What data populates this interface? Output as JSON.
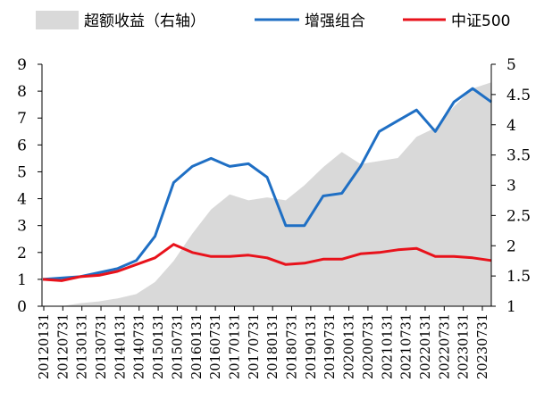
{
  "chart_data": {
    "type": "line",
    "title": "",
    "xlabel": "",
    "ylabel": "",
    "legend": {
      "position": "top",
      "entries": [
        {
          "label": "超额收益（右轴）",
          "kind": "area",
          "color": "#d9d9d9"
        },
        {
          "label": "增强组合",
          "kind": "line",
          "color": "#1f6fc4"
        },
        {
          "label": "中证500",
          "kind": "line",
          "color": "#e8121b"
        }
      ]
    },
    "ylim_left": [
      0,
      9
    ],
    "yticks_left": [
      "0",
      "1",
      "2",
      "3",
      "4",
      "5",
      "6",
      "7",
      "8",
      "9"
    ],
    "ylim_right": [
      1,
      5
    ],
    "yticks_right": [
      "1",
      "1.5",
      "2",
      "2.5",
      "3",
      "3.5",
      "4",
      "4.5",
      "5"
    ],
    "grid": false,
    "x": [
      "2012-01",
      "2012-07",
      "2013-01",
      "2013-07",
      "2014-01",
      "2014-07",
      "2015-01",
      "2015-07",
      "2016-01",
      "2016-07",
      "2017-01",
      "2017-07",
      "2018-01",
      "2018-07",
      "2019-01",
      "2019-07",
      "2020-01",
      "2020-07",
      "2021-01",
      "2021-07",
      "2022-01",
      "2022-07",
      "2023-01",
      "2023-07",
      "2023-10"
    ],
    "xtick_labels": [
      "20120131",
      "20120731",
      "20130131",
      "20130731",
      "20140131",
      "20140731",
      "20150131",
      "20150731",
      "20160131",
      "20160731",
      "20170131",
      "20170731",
      "20180131",
      "20180731",
      "20190131",
      "20190731",
      "20200131",
      "20200731",
      "20210131",
      "20210731",
      "20220131",
      "20220731",
      "20230131",
      "20230731"
    ],
    "series": [
      {
        "name": "超额收益（右轴）",
        "axis": "right",
        "type": "area",
        "color": "#d9d9d9",
        "values": [
          1.0,
          1.0,
          1.05,
          1.08,
          1.13,
          1.2,
          1.4,
          1.75,
          2.2,
          2.6,
          2.85,
          2.75,
          2.8,
          2.75,
          3.0,
          3.3,
          3.55,
          3.35,
          3.4,
          3.45,
          3.8,
          3.95,
          4.3,
          4.6,
          4.7
        ]
      },
      {
        "name": "增强组合",
        "axis": "left",
        "type": "line",
        "color": "#1f6fc4",
        "values": [
          1.0,
          1.05,
          1.1,
          1.25,
          1.4,
          1.7,
          2.6,
          4.6,
          5.2,
          5.5,
          5.2,
          5.3,
          4.8,
          3.0,
          3.0,
          4.1,
          4.2,
          5.2,
          6.5,
          6.9,
          7.3,
          6.5,
          7.6,
          8.1,
          7.6
        ]
      },
      {
        "name": "中证500",
        "axis": "left",
        "type": "line",
        "color": "#e8121b",
        "values": [
          1.0,
          0.95,
          1.1,
          1.15,
          1.3,
          1.55,
          1.8,
          2.3,
          2.0,
          1.85,
          1.85,
          1.9,
          1.8,
          1.55,
          1.6,
          1.75,
          1.75,
          1.95,
          2.0,
          2.1,
          2.15,
          1.85,
          1.85,
          1.8,
          1.7
        ]
      }
    ]
  }
}
